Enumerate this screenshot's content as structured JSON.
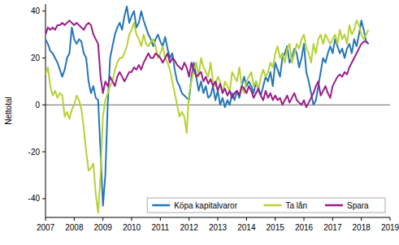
{
  "chart_data": {
    "type": "line",
    "y_label": "Nettotal",
    "x": [
      2007,
      2007.083,
      2007.167,
      2007.25,
      2007.333,
      2007.417,
      2007.5,
      2007.583,
      2007.667,
      2007.75,
      2007.833,
      2007.917,
      2008,
      2008.083,
      2008.167,
      2008.25,
      2008.333,
      2008.417,
      2008.5,
      2008.583,
      2008.667,
      2008.75,
      2008.833,
      2008.917,
      2009,
      2009.083,
      2009.167,
      2009.25,
      2009.333,
      2009.417,
      2009.5,
      2009.583,
      2009.667,
      2009.75,
      2009.833,
      2009.917,
      2010,
      2010.083,
      2010.167,
      2010.25,
      2010.333,
      2010.417,
      2010.5,
      2010.583,
      2010.667,
      2010.75,
      2010.833,
      2010.917,
      2011,
      2011.083,
      2011.167,
      2011.25,
      2011.333,
      2011.417,
      2011.5,
      2011.583,
      2011.667,
      2011.75,
      2011.833,
      2011.917,
      2012,
      2012.083,
      2012.167,
      2012.25,
      2012.333,
      2012.417,
      2012.5,
      2012.583,
      2012.667,
      2012.75,
      2012.833,
      2012.917,
      2013,
      2013.083,
      2013.167,
      2013.25,
      2013.333,
      2013.417,
      2013.5,
      2013.583,
      2013.667,
      2013.75,
      2013.833,
      2013.917,
      2014,
      2014.083,
      2014.167,
      2014.25,
      2014.333,
      2014.417,
      2014.5,
      2014.583,
      2014.667,
      2014.75,
      2014.833,
      2014.917,
      2015,
      2015.083,
      2015.167,
      2015.25,
      2015.333,
      2015.417,
      2015.5,
      2015.583,
      2015.667,
      2015.75,
      2015.833,
      2015.917,
      2016,
      2016.083,
      2016.167,
      2016.25,
      2016.333,
      2016.417,
      2016.5,
      2016.583,
      2016.667,
      2016.75,
      2016.833,
      2016.917,
      2017,
      2017.083,
      2017.167,
      2017.25,
      2017.333,
      2017.417,
      2017.5,
      2017.583,
      2017.667,
      2017.75,
      2017.833,
      2017.917,
      2018,
      2018.083,
      2018.167,
      2018.25
    ],
    "series": [
      {
        "name": "Köpa kapitalvaror",
        "color": "#2576b5",
        "values": [
          28,
          26,
          23,
          22,
          20,
          18,
          15,
          12,
          15,
          20,
          22,
          33,
          28,
          26,
          28,
          27,
          22,
          20,
          10,
          5,
          8,
          3,
          2,
          -20,
          -43,
          -30,
          0,
          20,
          25,
          30,
          33,
          35,
          32,
          38,
          42,
          35,
          38,
          40,
          33,
          35,
          40,
          36,
          33,
          30,
          28,
          25,
          28,
          30,
          27,
          25,
          29,
          24,
          20,
          22,
          15,
          10,
          8,
          5,
          4,
          3,
          2,
          12,
          18,
          12,
          6,
          10,
          5,
          8,
          3,
          4,
          8,
          2,
          6,
          0,
          3,
          -1,
          2,
          0,
          5,
          2,
          6,
          3,
          8,
          12,
          8,
          10,
          8,
          5,
          10,
          6,
          4,
          8,
          12,
          10,
          14,
          8,
          18,
          15,
          12,
          20,
          22,
          25,
          18,
          20,
          24,
          22,
          16,
          20,
          26,
          14,
          10,
          5,
          0,
          2,
          8,
          14,
          20,
          18,
          22,
          25,
          22,
          28,
          25,
          22,
          24,
          20,
          24,
          26,
          22,
          28,
          25,
          30,
          36,
          32,
          27,
          26
        ]
      },
      {
        "name": "Ta lån",
        "color": "#b4d334",
        "values": [
          13,
          16,
          8,
          4,
          6,
          3,
          5,
          4,
          -5,
          -3,
          -6,
          -2,
          0,
          4,
          2,
          -2,
          -10,
          -20,
          -28,
          -27,
          -25,
          -38,
          -46,
          -30,
          -5,
          2,
          5,
          8,
          10,
          15,
          18,
          20,
          20,
          22,
          25,
          30,
          32,
          35,
          30,
          28,
          25,
          30,
          26,
          25,
          27,
          28,
          25,
          20,
          22,
          25,
          20,
          18,
          15,
          10,
          5,
          0,
          -5,
          -3,
          -5,
          -12,
          5,
          10,
          15,
          18,
          12,
          20,
          16,
          14,
          12,
          18,
          10,
          8,
          12,
          10,
          5,
          10,
          8,
          6,
          14,
          12,
          10,
          16,
          8,
          5,
          10,
          12,
          14,
          8,
          10,
          6,
          12,
          15,
          12,
          14,
          18,
          16,
          22,
          25,
          20,
          22,
          18,
          24,
          26,
          18,
          22,
          26,
          24,
          28,
          30,
          24,
          22,
          18,
          26,
          22,
          28,
          30,
          26,
          30,
          28,
          26,
          28,
          30,
          26,
          32,
          28,
          30,
          26,
          34,
          30,
          32,
          36,
          34,
          30,
          28,
          30,
          32
        ]
      },
      {
        "name": "Spara",
        "color": "#9a1d8a",
        "values": [
          30,
          33,
          32,
          33,
          32,
          34,
          34,
          35,
          34,
          35,
          36,
          35,
          34,
          35,
          34,
          33,
          32,
          34,
          35,
          34,
          30,
          28,
          26,
          12,
          5,
          10,
          8,
          12,
          10,
          8,
          12,
          14,
          12,
          10,
          12,
          14,
          14,
          16,
          15,
          17,
          15,
          18,
          20,
          22,
          20,
          20,
          22,
          21,
          20,
          18,
          20,
          22,
          18,
          20,
          19,
          17,
          16,
          15,
          18,
          16,
          12,
          18,
          15,
          12,
          13,
          14,
          10,
          12,
          9,
          11,
          8,
          10,
          6,
          9,
          5,
          7,
          4,
          6,
          3,
          5,
          6,
          4,
          8,
          7,
          5,
          8,
          6,
          3,
          5,
          7,
          4,
          2,
          6,
          3,
          5,
          2,
          4,
          2,
          3,
          0,
          2,
          4,
          1,
          3,
          5,
          2,
          1,
          0,
          2,
          -1,
          1,
          3,
          5,
          8,
          10,
          4,
          6,
          8,
          5,
          3,
          8,
          10,
          12,
          13,
          12,
          14,
          13,
          16,
          18,
          20,
          22,
          24,
          26,
          27,
          27,
          26
        ]
      }
    ],
    "xlim": [
      2007,
      2019
    ],
    "xticks": [
      2007,
      2008,
      2009,
      2010,
      2011,
      2012,
      2013,
      2014,
      2015,
      2016,
      2017,
      2018,
      2019
    ],
    "ylim": [
      -48,
      43
    ],
    "yticks": [
      -40,
      -20,
      0,
      20,
      40
    ],
    "grid": false,
    "legend": "lower right"
  }
}
